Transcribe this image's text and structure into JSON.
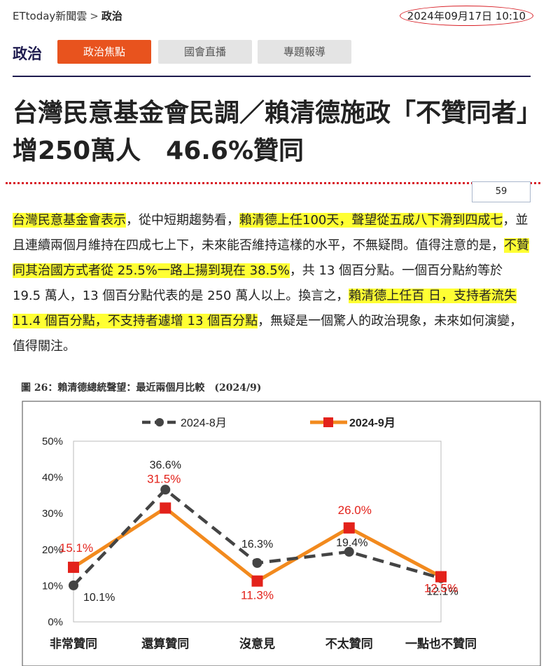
{
  "breadcrumb": {
    "site": "ETtoday新聞雲",
    "separator": ">",
    "section": "政治"
  },
  "date": "2024年09月17日 10:10",
  "nav": {
    "title": "政治",
    "tabs": [
      {
        "label": "政治焦點",
        "active": true
      },
      {
        "label": "國會直播",
        "active": false
      },
      {
        "label": "專題報導",
        "active": false
      }
    ]
  },
  "headline": "台灣民意基金會民調／賴清德施政「不贊同者」增250萬人　46.6%贊同",
  "page_number": "59",
  "article": {
    "segments": [
      {
        "text": "台灣民意基金會表示",
        "hl": true
      },
      {
        "text": "，從中短期趨勢看，",
        "hl": false
      },
      {
        "text": "賴清德上任100天，聲望從五成八下滑到四成七",
        "hl": true
      },
      {
        "text": "，並且連續兩個月維持在四成七上下，未來能否維持這樣的水平，不無疑問。值得注意的是，",
        "hl": false
      },
      {
        "text": "不贊同其治國方式者從 25.5%一路上揚到現在 38.5%",
        "hl": true
      },
      {
        "text": "，共 13 個百分點。一個百分點約等於 19.5 萬人，13 個百分點代表的是 250 萬人以上。換言之，",
        "hl": false
      },
      {
        "text": "賴清德上任百 日，支持者流失 11.4 個百分點，不支持者遽增 13 個百分點",
        "hl": true
      },
      {
        "text": "，無疑是一個驚人的政治現象，未來如何演變，值得關注。",
        "hl": false
      }
    ]
  },
  "chart_title": "圖 26：賴清德總統聲望：最近兩個月比較　(2024/9)",
  "chart_data": {
    "type": "line",
    "categories": [
      "非常贊同",
      "還算贊同",
      "沒意見",
      "不太贊同",
      "一點也不贊同"
    ],
    "series": [
      {
        "name": "2024-8月",
        "values": [
          10.1,
          36.6,
          16.3,
          19.4,
          12.1
        ],
        "color": "#444444",
        "labels": [
          "10.1%",
          "36.6%",
          "16.3%",
          "19.4%",
          "12.1%"
        ]
      },
      {
        "name": "2024-9月",
        "values": [
          15.1,
          31.5,
          11.3,
          26.0,
          12.5
        ],
        "color": "#f28a1e",
        "marker_color": "#e3221b",
        "labels": [
          "15.1%",
          "31.5%",
          "11.3%",
          "26.0%",
          "12.5%"
        ]
      }
    ],
    "ylim": [
      0,
      50
    ],
    "yticks": [
      "0%",
      "10%",
      "20%",
      "30%",
      "40%",
      "50%"
    ],
    "grid": false,
    "legend": "top"
  },
  "colors": {
    "accent": "#e8531e",
    "navy": "#1d1a4e",
    "highlight": "#ffff33",
    "date_circle": "#d81f26"
  }
}
